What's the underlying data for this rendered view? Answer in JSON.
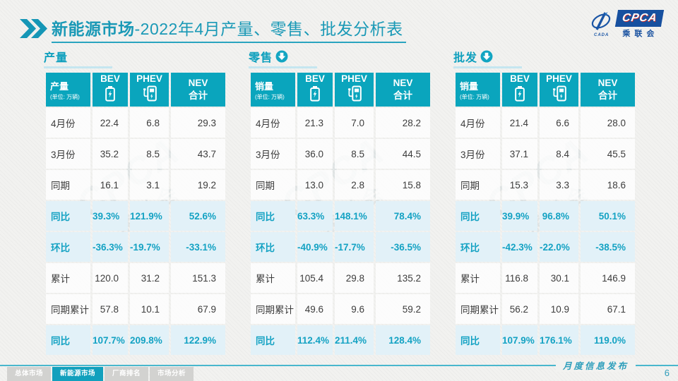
{
  "colors": {
    "accent_teal": "#0aa5bd",
    "title_teal": "#1a99b6",
    "highlight_row_bg": "#e2f1f8",
    "highlight_text": "#14a2c3",
    "logo_blue": "#17509f",
    "inactive_tab_gray": "#d2d2d0",
    "footer_line": "#49b7cd"
  },
  "header": {
    "title_bold": "新能源市场",
    "title_rest": "-2022年4月产量、零售、批发分析表",
    "logo": {
      "acronym": "CPCA",
      "subtitle": "乘联会",
      "mark_text": "CADA"
    }
  },
  "watermark": {
    "line1": "CPCA",
    "line2": "乘联会"
  },
  "tables": [
    {
      "section": "产量",
      "has_arrow": false,
      "measure_label": "产量",
      "unit_label": "(单位: 万辆)",
      "columns": {
        "bev": "BEV",
        "phev": "PHEV",
        "nev_line1": "NEV",
        "nev_line2": "合计"
      },
      "rows": [
        {
          "label": "4月份",
          "values": [
            "22.4",
            "6.8",
            "29.3"
          ],
          "highlight": false
        },
        {
          "label": "3月份",
          "values": [
            "35.2",
            "8.5",
            "43.7"
          ],
          "highlight": false
        },
        {
          "label": "同期",
          "values": [
            "16.1",
            "3.1",
            "19.2"
          ],
          "highlight": false
        },
        {
          "label": "同比",
          "values": [
            "39.3%",
            "121.9%",
            "52.6%"
          ],
          "highlight": true
        },
        {
          "label": "环比",
          "values": [
            "-36.3%",
            "-19.7%",
            "-33.1%"
          ],
          "highlight": true
        },
        {
          "label": "累计",
          "values": [
            "120.0",
            "31.2",
            "151.3"
          ],
          "highlight": false
        },
        {
          "label": "同期累计",
          "values": [
            "57.8",
            "10.1",
            "67.9"
          ],
          "highlight": false
        },
        {
          "label": "同比",
          "values": [
            "107.7%",
            "209.8%",
            "122.9%"
          ],
          "highlight": true
        }
      ]
    },
    {
      "section": "零售",
      "has_arrow": true,
      "measure_label": "销量",
      "unit_label": "(单位: 万辆)",
      "columns": {
        "bev": "BEV",
        "phev": "PHEV",
        "nev_line1": "NEV",
        "nev_line2": "合计"
      },
      "rows": [
        {
          "label": "4月份",
          "values": [
            "21.3",
            "7.0",
            "28.2"
          ],
          "highlight": false
        },
        {
          "label": "3月份",
          "values": [
            "36.0",
            "8.5",
            "44.5"
          ],
          "highlight": false
        },
        {
          "label": "同期",
          "values": [
            "13.0",
            "2.8",
            "15.8"
          ],
          "highlight": false
        },
        {
          "label": "同比",
          "values": [
            "63.3%",
            "148.1%",
            "78.4%"
          ],
          "highlight": true
        },
        {
          "label": "环比",
          "values": [
            "-40.9%",
            "-17.7%",
            "-36.5%"
          ],
          "highlight": true
        },
        {
          "label": "累计",
          "values": [
            "105.4",
            "29.8",
            "135.2"
          ],
          "highlight": false
        },
        {
          "label": "同期累计",
          "values": [
            "49.6",
            "9.6",
            "59.2"
          ],
          "highlight": false
        },
        {
          "label": "同比",
          "values": [
            "112.4%",
            "211.4%",
            "128.4%"
          ],
          "highlight": true
        }
      ]
    },
    {
      "section": "批发",
      "has_arrow": true,
      "measure_label": "销量",
      "unit_label": "(单位: 万辆)",
      "columns": {
        "bev": "BEV",
        "phev": "PHEV",
        "nev_line1": "NEV",
        "nev_line2": "合计"
      },
      "rows": [
        {
          "label": "4月份",
          "values": [
            "21.4",
            "6.6",
            "28.0"
          ],
          "highlight": false
        },
        {
          "label": "3月份",
          "values": [
            "37.1",
            "8.4",
            "45.5"
          ],
          "highlight": false
        },
        {
          "label": "同期",
          "values": [
            "15.3",
            "3.3",
            "18.6"
          ],
          "highlight": false
        },
        {
          "label": "同比",
          "values": [
            "39.9%",
            "96.8%",
            "50.1%"
          ],
          "highlight": true
        },
        {
          "label": "环比",
          "values": [
            "-42.3%",
            "-22.0%",
            "-38.5%"
          ],
          "highlight": true
        },
        {
          "label": "累计",
          "values": [
            "116.8",
            "30.1",
            "146.9"
          ],
          "highlight": false
        },
        {
          "label": "同期累计",
          "values": [
            "56.2",
            "10.9",
            "67.1"
          ],
          "highlight": false
        },
        {
          "label": "同比",
          "values": [
            "107.9%",
            "176.1%",
            "119.0%"
          ],
          "highlight": true
        }
      ]
    }
  ],
  "footer": {
    "tabs": [
      {
        "label": "总体市场",
        "active": false
      },
      {
        "label": "新能源市场",
        "active": true
      },
      {
        "label": "厂商排名",
        "active": false
      },
      {
        "label": "市场分析",
        "active": false
      }
    ],
    "publication": "月度信息发布",
    "page_number": "6"
  }
}
